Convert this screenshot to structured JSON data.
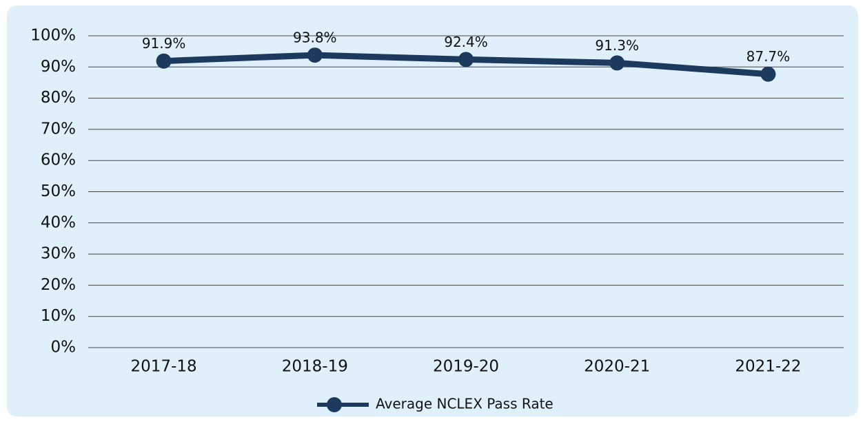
{
  "chart_data": {
    "type": "line",
    "categories": [
      "2017-18",
      "2018-19",
      "2019-20",
      "2020-21",
      "2021-22"
    ],
    "series": [
      {
        "name": "Average NCLEX Pass Rate",
        "color": "#1c3a5e",
        "values": [
          91.9,
          93.8,
          92.4,
          91.3,
          87.7
        ],
        "value_labels": [
          "91.9%",
          "93.8%",
          "92.4%",
          "91.3%",
          "87.7%"
        ]
      }
    ],
    "ylim": [
      0,
      100
    ],
    "yticks": [
      {
        "value": 0,
        "label": "0%"
      },
      {
        "value": 10,
        "label": "10%"
      },
      {
        "value": 20,
        "label": "20%"
      },
      {
        "value": 30,
        "label": "30%"
      },
      {
        "value": 40,
        "label": "40%"
      },
      {
        "value": 50,
        "label": "50%"
      },
      {
        "value": 60,
        "label": "60%"
      },
      {
        "value": 70,
        "label": "70%"
      },
      {
        "value": 80,
        "label": "80%"
      },
      {
        "value": 90,
        "label": "90%"
      },
      {
        "value": 100,
        "label": "100%"
      }
    ],
    "grid": true,
    "legend": "bottom"
  }
}
